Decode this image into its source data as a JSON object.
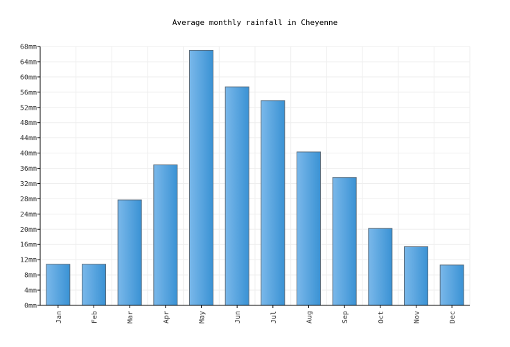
{
  "chart_data": {
    "type": "bar",
    "title": "Average monthly rainfall in Cheyenne",
    "categories": [
      "Jan",
      "Feb",
      "Mar",
      "Apr",
      "May",
      "Jun",
      "Jul",
      "Aug",
      "Sep",
      "Oct",
      "Nov",
      "Dec"
    ],
    "values": [
      10.8,
      10.8,
      27.7,
      36.9,
      67.0,
      57.4,
      53.8,
      40.3,
      33.6,
      20.2,
      15.4,
      10.6
    ],
    "unit": "mm",
    "ylim": [
      0,
      68
    ],
    "yticks": [
      "0mm",
      "4mm",
      "8mm",
      "12mm",
      "16mm",
      "20mm",
      "24mm",
      "28mm",
      "32mm",
      "36mm",
      "40mm",
      "44mm",
      "48mm",
      "52mm",
      "56mm",
      "60mm",
      "64mm",
      "68mm"
    ],
    "xlabel": "",
    "ylabel": "",
    "grid": true,
    "bar_color": "#4a9fe0"
  }
}
